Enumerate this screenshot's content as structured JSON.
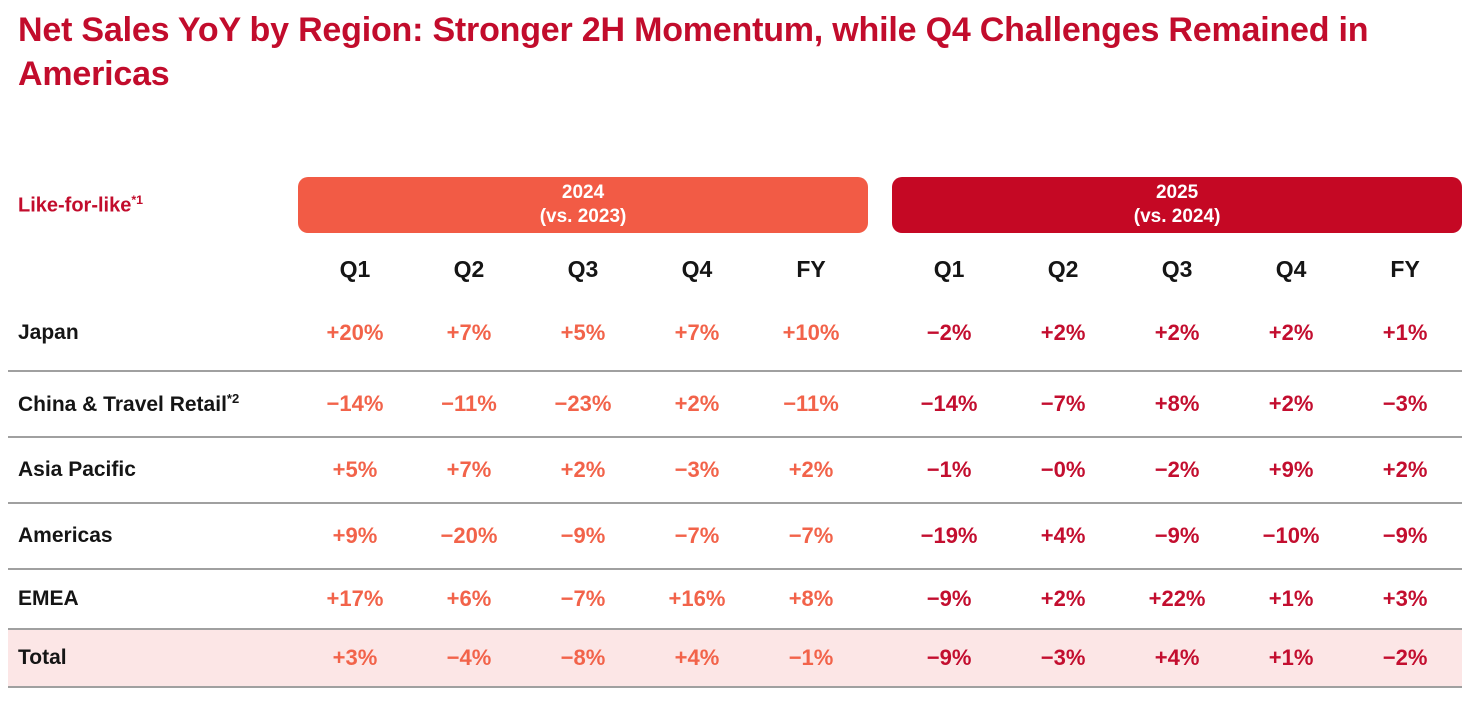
{
  "title": "Net Sales YoY by Region: Stronger 2H Momentum, while Q4 Challenges Remained in Americas",
  "table": {
    "row_header_label": "Like-for-like",
    "row_header_sup": "*1",
    "period_bands": [
      {
        "year": "2024",
        "vs": "(vs. 2023)"
      },
      {
        "year": "2025",
        "vs": "(vs. 2024)"
      }
    ],
    "quarter_headers": [
      "Q1",
      "Q2",
      "Q3",
      "Q4",
      "FY"
    ],
    "rows": [
      {
        "label": "Japan",
        "sup": "",
        "y2024": [
          "+20%",
          "+7%",
          "+5%",
          "+7%",
          "+10%"
        ],
        "y2025": [
          "−2%",
          "+2%",
          "+2%",
          "+2%",
          "+1%"
        ],
        "total": false
      },
      {
        "label": "China & Travel Retail",
        "sup": "*2",
        "y2024": [
          "−14%",
          "−11%",
          "−23%",
          "+2%",
          "−11%"
        ],
        "y2025": [
          "−14%",
          "−7%",
          "+8%",
          "+2%",
          "−3%"
        ],
        "total": false
      },
      {
        "label": "Asia Pacific",
        "sup": "",
        "y2024": [
          "+5%",
          "+7%",
          "+2%",
          "−3%",
          "+2%"
        ],
        "y2025": [
          "−1%",
          "−0%",
          "−2%",
          "+9%",
          "+2%"
        ],
        "total": false
      },
      {
        "label": "Americas",
        "sup": "",
        "y2024": [
          "+9%",
          "−20%",
          "−9%",
          "−7%",
          "−7%"
        ],
        "y2025": [
          "−19%",
          "+4%",
          "−9%",
          "−10%",
          "−9%"
        ],
        "total": false
      },
      {
        "label": "EMEA",
        "sup": "",
        "y2024": [
          "+17%",
          "+6%",
          "−7%",
          "+16%",
          "+8%"
        ],
        "y2025": [
          "−9%",
          "+2%",
          "+22%",
          "+1%",
          "+3%"
        ],
        "total": false
      },
      {
        "label": "Total",
        "sup": "",
        "y2024": [
          "+3%",
          "−4%",
          "−8%",
          "+4%",
          "−1%"
        ],
        "y2025": [
          "−9%",
          "−3%",
          "+4%",
          "+1%",
          "−2%"
        ],
        "total": true
      }
    ]
  },
  "colors": {
    "title_red": "#C20C2C",
    "band_orange": "#F25B45",
    "band_red": "#C50824",
    "salmon_values": "#F2634A",
    "crimson_values": "#C30E2F",
    "total_row_pink": "#FCE6E6",
    "divider_gray": "#A0A0A0"
  },
  "chart_data": {
    "type": "table",
    "title": "Net Sales YoY by Region: Stronger 2H Momentum, while Q4 Challenges Remained in Americas",
    "row_header": "Like-for-like*1",
    "column_groups": [
      "2024 (vs. 2023)",
      "2025 (vs. 2024)"
    ],
    "columns": [
      "Q1",
      "Q2",
      "Q3",
      "Q4",
      "FY",
      "Q1",
      "Q2",
      "Q3",
      "Q4",
      "FY"
    ],
    "rows": [
      {
        "region": "Japan",
        "values": [
          "+20%",
          "+7%",
          "+5%",
          "+7%",
          "+10%",
          "−2%",
          "+2%",
          "+2%",
          "+2%",
          "+1%"
        ]
      },
      {
        "region": "China & Travel Retail*2",
        "values": [
          "−14%",
          "−11%",
          "−23%",
          "+2%",
          "−11%",
          "−14%",
          "−7%",
          "+8%",
          "+2%",
          "−3%"
        ]
      },
      {
        "region": "Asia Pacific",
        "values": [
          "+5%",
          "+7%",
          "+2%",
          "−3%",
          "+2%",
          "−1%",
          "−0%",
          "−2%",
          "+9%",
          "+2%"
        ]
      },
      {
        "region": "Americas",
        "values": [
          "+9%",
          "−20%",
          "−9%",
          "−7%",
          "−7%",
          "−19%",
          "+4%",
          "−9%",
          "−10%",
          "−9%"
        ]
      },
      {
        "region": "EMEA",
        "values": [
          "+17%",
          "+6%",
          "−7%",
          "+16%",
          "+8%",
          "−9%",
          "+2%",
          "+22%",
          "+1%",
          "+3%"
        ]
      },
      {
        "region": "Total",
        "values": [
          "+3%",
          "−4%",
          "−8%",
          "+4%",
          "−1%",
          "−9%",
          "−3%",
          "+4%",
          "+1%",
          "−2%"
        ]
      }
    ]
  }
}
